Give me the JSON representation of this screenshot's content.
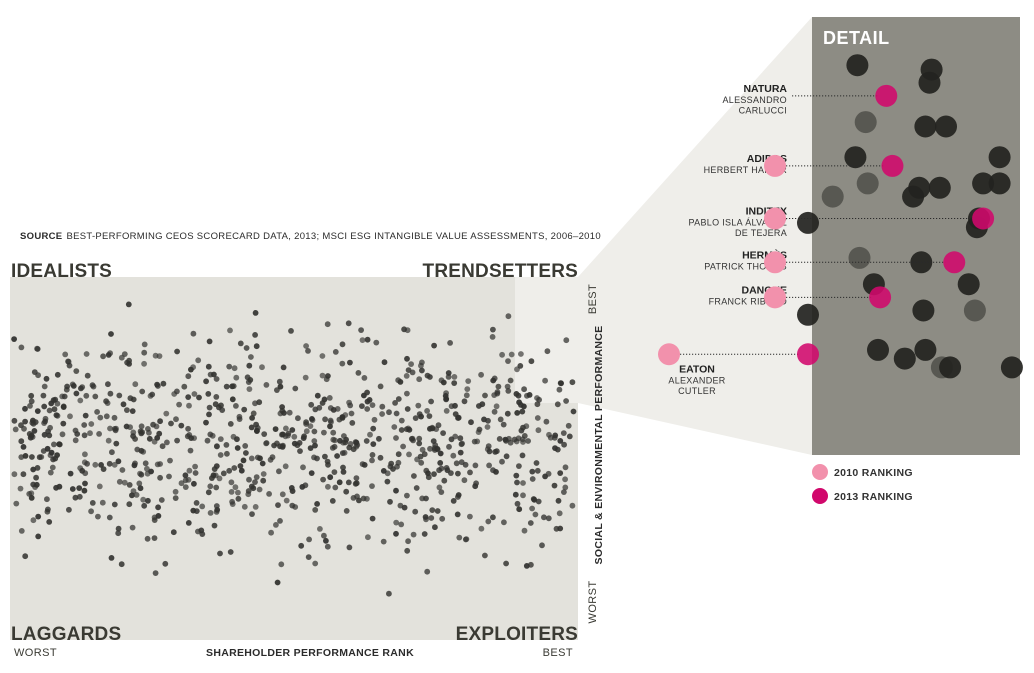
{
  "source": {
    "label": "SOURCE",
    "text": "BEST-PERFORMING CEOS SCORECARD DATA, 2013; MSCI ESG INTANGIBLE VALUE ASSESSMENTS, 2006–2010"
  },
  "quadrants": {
    "top_left": "IDEALISTS",
    "top_right": "TRENDSETTERS",
    "bottom_left": "LAGGARDS",
    "bottom_right": "EXPLOITERS"
  },
  "colors": {
    "panel": "#e3e2dc",
    "highlight": "#c8c8bf",
    "detail_bg": "#8d8c84",
    "dot": "#333330",
    "ranking_2010": "#f291ac",
    "ranking_2013": "#d1086c"
  },
  "chart_data": {
    "type": "scatter",
    "xlabel": "SHAREHOLDER PERFORMANCE RANK",
    "ylabel": "SOCIAL & ENVIRONMENTAL PERFORMANCE",
    "x_ends": {
      "left": "WORST",
      "right": "BEST"
    },
    "y_ends": {
      "bottom": "WORST",
      "top": "BEST"
    },
    "xlim": [
      0,
      100
    ],
    "ylim": [
      0,
      100
    ],
    "n_points": 900,
    "detail_title": "DETAIL",
    "legend": [
      {
        "label": "2010 RANKING",
        "color": "#f291ac"
      },
      {
        "label": "2013 RANKING",
        "color": "#d1086c"
      }
    ],
    "annotations": [
      {
        "company": "NATURA",
        "ceo": [
          "ALESSANDRO",
          "CARLUCCI"
        ],
        "y2010": null,
        "x2013": 38,
        "y2013": 82
      },
      {
        "company": "ADIDAS",
        "ceo": [
          "HERBERT HAINER"
        ],
        "y2010": 66,
        "x2013": 41,
        "y2013": 66
      },
      {
        "company": "INDITEX",
        "ceo": [
          "PABLO ISLA ÁLVAREZ",
          "DE TEJERA"
        ],
        "y2010": 54,
        "x2013": 85,
        "y2013": 54
      },
      {
        "company": "HERMÈS",
        "ceo": [
          "PATRICK THOMAS"
        ],
        "y2010": 44,
        "x2013": 71,
        "y2013": 44
      },
      {
        "company": "DANONE",
        "ceo": [
          "FRANCK RIBOUD"
        ],
        "y2010": 36,
        "x2013": 35,
        "y2013": 36
      },
      {
        "company": "EATON",
        "ceo": [
          "ALEXANDER",
          "CUTLER"
        ],
        "y2010": 23,
        "x2013": 0,
        "y2013": 23
      }
    ],
    "detail_dots": [
      [
        24,
        89
      ],
      [
        60,
        88
      ],
      [
        59,
        85
      ],
      [
        28,
        76
      ],
      [
        57,
        75
      ],
      [
        67,
        75
      ],
      [
        23,
        68
      ],
      [
        93,
        68
      ],
      [
        29,
        62
      ],
      [
        64,
        61
      ],
      [
        54,
        61
      ],
      [
        85,
        62
      ],
      [
        93,
        62
      ],
      [
        12,
        59
      ],
      [
        51,
        59
      ],
      [
        83,
        54
      ],
      [
        82,
        52
      ],
      [
        0,
        53
      ],
      [
        25,
        45
      ],
      [
        55,
        44
      ],
      [
        78,
        39
      ],
      [
        32,
        39
      ],
      [
        56,
        33
      ],
      [
        81,
        33
      ],
      [
        0,
        32
      ],
      [
        34,
        24
      ],
      [
        47,
        22
      ],
      [
        57,
        24
      ],
      [
        65,
        20
      ],
      [
        69,
        20
      ],
      [
        99,
        20
      ]
    ]
  }
}
